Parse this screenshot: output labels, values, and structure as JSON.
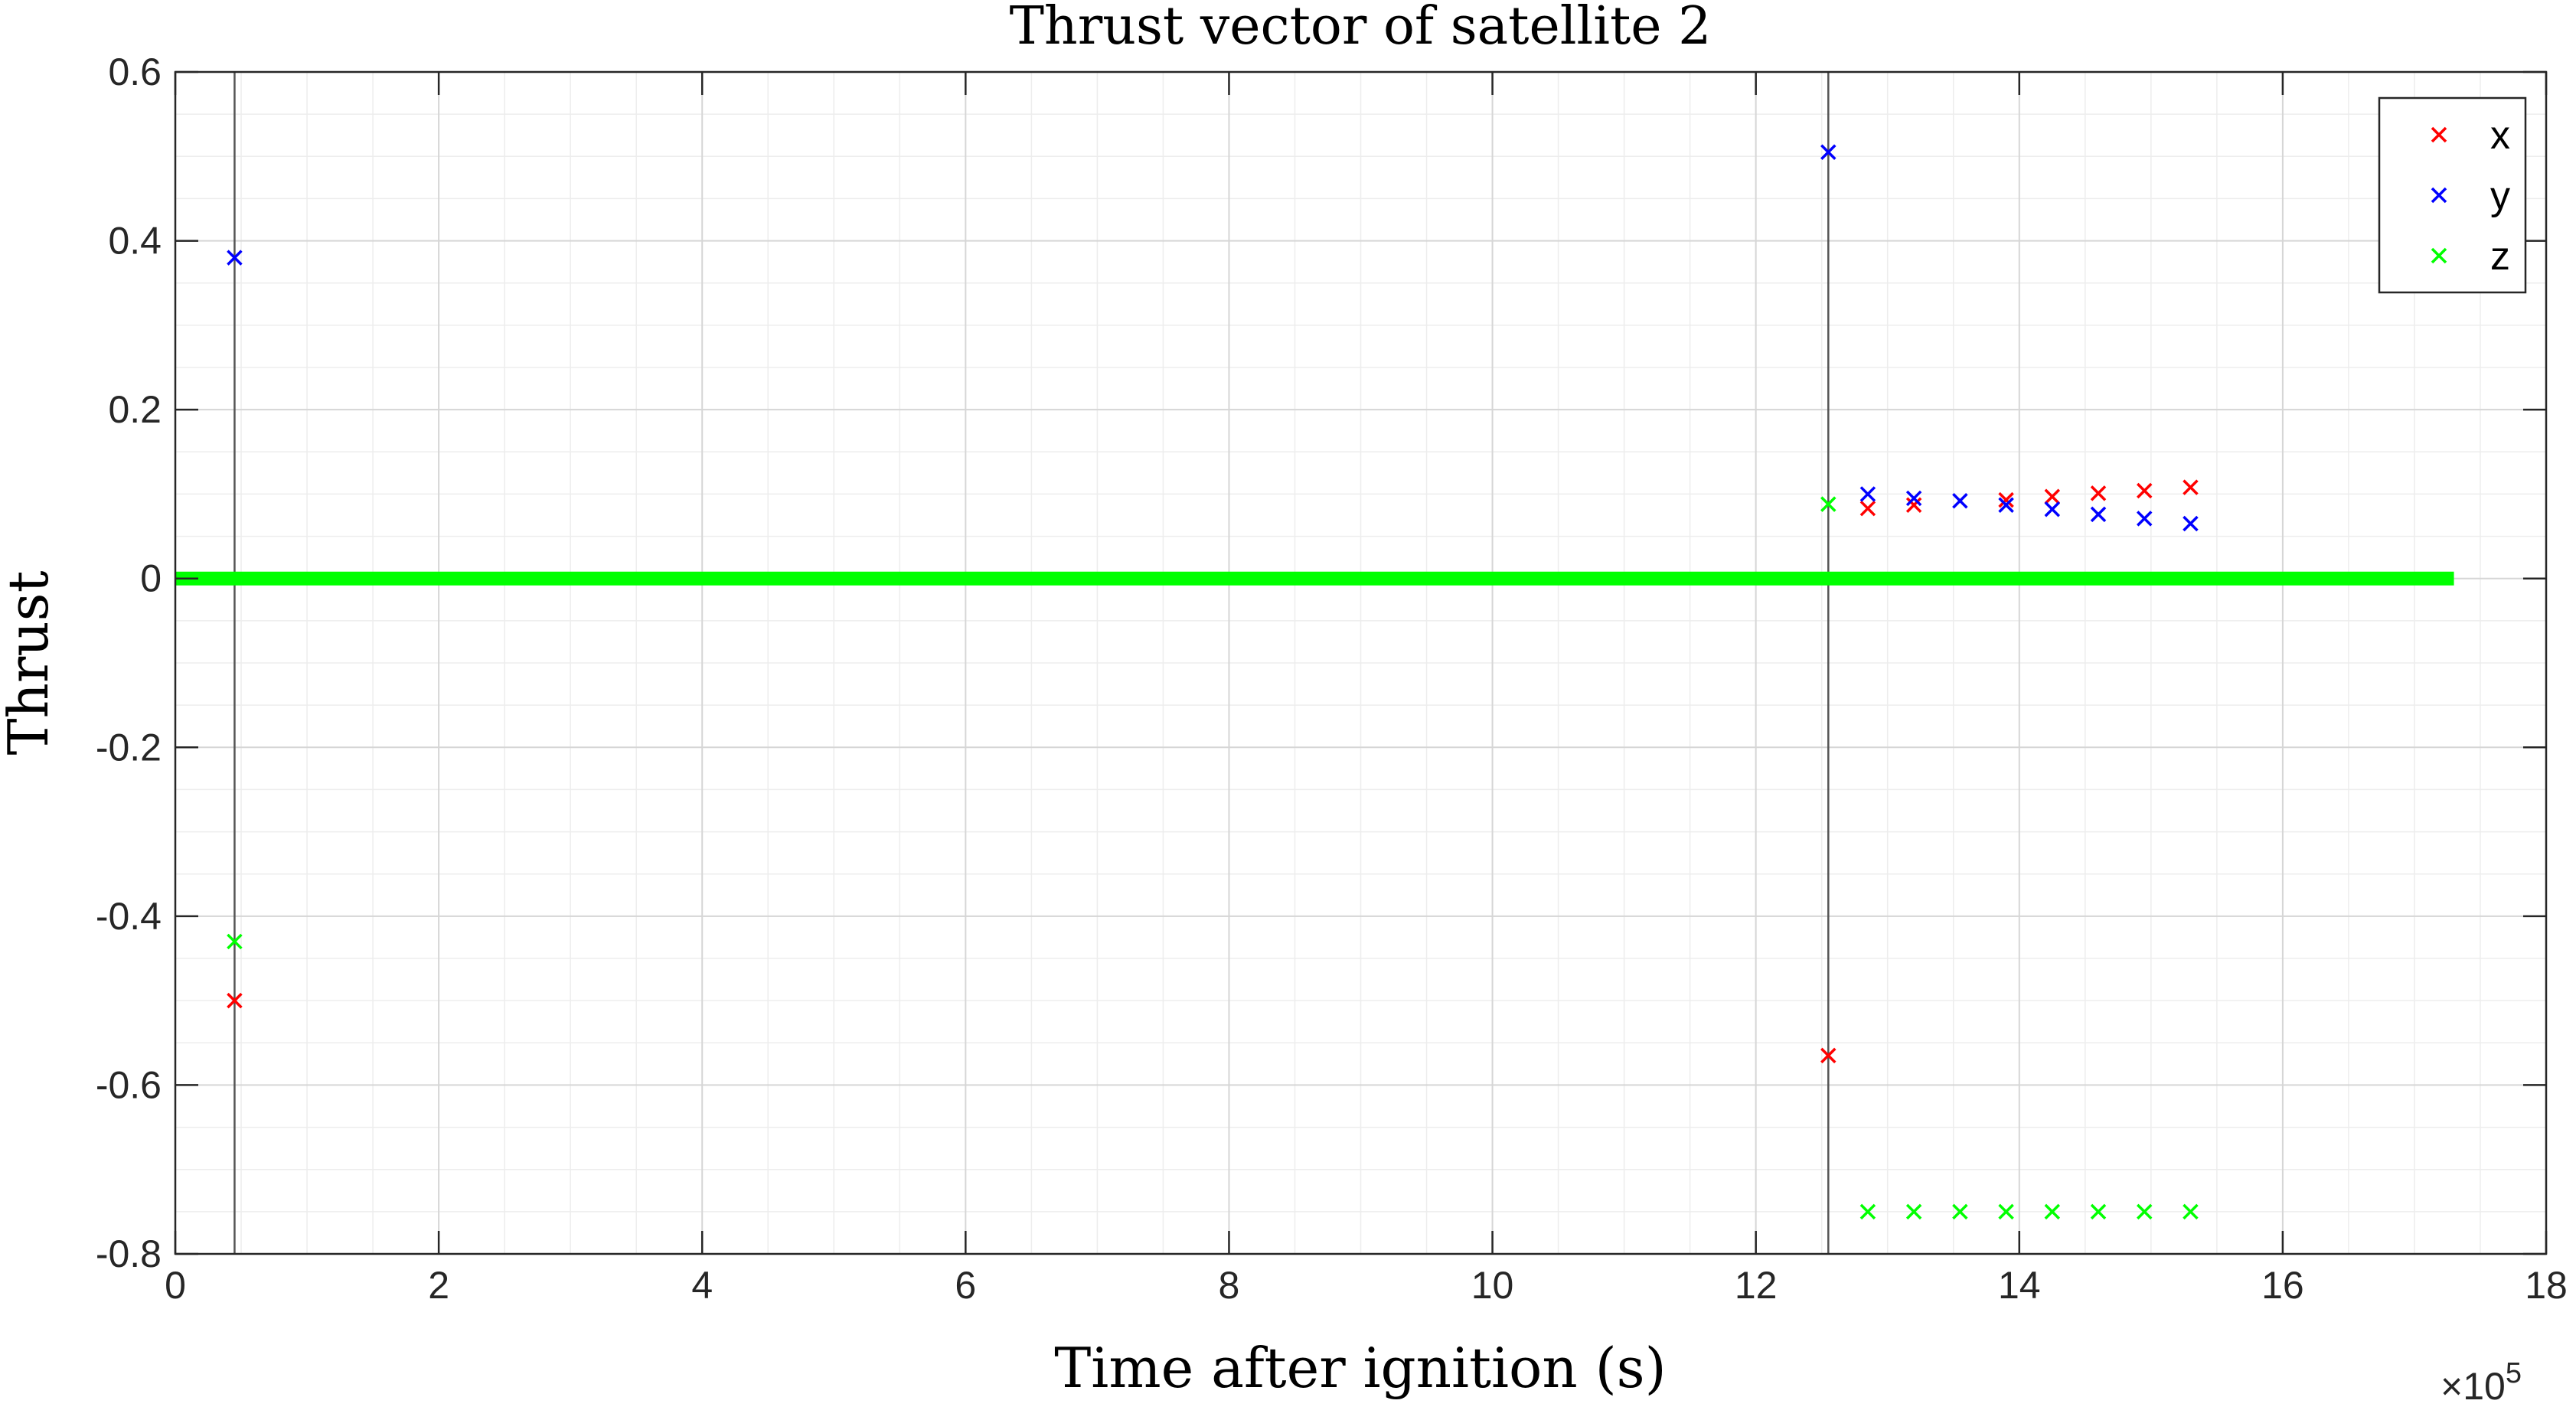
{
  "chart_data": {
    "type": "scatter",
    "title": "Thrust vector of satellite 2",
    "xlabel": "Time after ignition (s)",
    "ylabel": "Thrust",
    "x_multiplier_label": "×10",
    "x_multiplier_exponent": "5",
    "xlim": [
      0,
      18
    ],
    "ylim": [
      -0.8,
      0.6
    ],
    "x_ticks": [
      0,
      2,
      4,
      6,
      8,
      10,
      12,
      14,
      16,
      18
    ],
    "y_ticks": [
      -0.8,
      -0.6,
      -0.4,
      -0.2,
      0,
      0.2,
      0.4,
      0.6
    ],
    "x_tick_labels": [
      "0",
      "2",
      "4",
      "6",
      "8",
      "10",
      "12",
      "14",
      "16",
      "18"
    ],
    "y_tick_labels": [
      "-0.8",
      "-0.6",
      "-0.4",
      "-0.2",
      "0",
      "0.2",
      "0.4",
      "0.6"
    ],
    "grid": true,
    "minor_grid": true,
    "legend_position": "top-right",
    "vertical_lines": [
      0.45,
      12.55
    ],
    "zero_line": {
      "x_start": 0,
      "x_end": 17.3,
      "value": 0
    },
    "series": [
      {
        "name": "x",
        "color": "#ff0000",
        "marker": "x",
        "points": [
          [
            0.45,
            -0.5
          ],
          [
            12.55,
            -0.565
          ],
          [
            12.85,
            0.083
          ],
          [
            13.2,
            0.087
          ],
          [
            13.9,
            0.093
          ],
          [
            14.25,
            0.097
          ],
          [
            14.6,
            0.101
          ],
          [
            14.95,
            0.104
          ],
          [
            15.3,
            0.108
          ]
        ]
      },
      {
        "name": "y",
        "color": "#0000ff",
        "marker": "x",
        "points": [
          [
            0.45,
            0.38
          ],
          [
            12.55,
            0.505
          ],
          [
            12.85,
            0.1
          ],
          [
            13.2,
            0.095
          ],
          [
            13.55,
            0.092
          ],
          [
            13.9,
            0.087
          ],
          [
            14.25,
            0.082
          ],
          [
            14.6,
            0.076
          ],
          [
            14.95,
            0.071
          ],
          [
            15.3,
            0.065
          ]
        ]
      },
      {
        "name": "z",
        "color": "#00ff00",
        "marker": "x",
        "points": [
          [
            0.45,
            -0.43
          ],
          [
            12.55,
            0.088
          ],
          [
            12.85,
            -0.75
          ],
          [
            13.2,
            -0.75
          ],
          [
            13.55,
            -0.75
          ],
          [
            13.9,
            -0.75
          ],
          [
            14.25,
            -0.75
          ],
          [
            14.6,
            -0.75
          ],
          [
            14.95,
            -0.75
          ],
          [
            15.3,
            -0.75
          ]
        ]
      }
    ]
  }
}
